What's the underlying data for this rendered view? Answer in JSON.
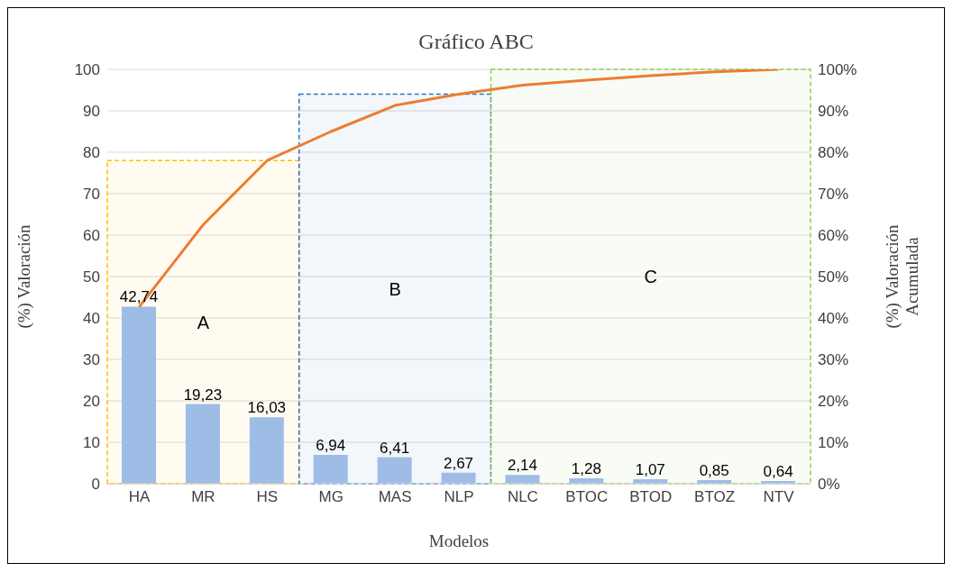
{
  "chart_data": {
    "type": "bar",
    "title": "Gráfico ABC",
    "xlabel": "Modelos",
    "ylabel": "(%) Valoración",
    "y2label": "(%) Valoración Acumulada",
    "categories": [
      "HA",
      "MR",
      "HS",
      "MG",
      "MAS",
      "NLP",
      "NLC",
      "BTOC",
      "BTOD",
      "BTOZ",
      "NTV"
    ],
    "series": [
      {
        "color": "#9dbde6",
        "values": [
          42.74,
          19.23,
          16.03,
          6.94,
          6.41,
          2.67,
          2.14,
          1.28,
          1.07,
          0.85,
          0.64
        ],
        "value_labels": [
          "42,74",
          "19,23",
          "16,03",
          "6,94",
          "6,41",
          "2,67",
          "2,14",
          "1,28",
          "1,07",
          "0,85",
          "0,64"
        ]
      },
      {
        "type": "line",
        "axis": "y2",
        "color": "#ed7d31",
        "values": [
          42.7,
          62.5,
          78,
          85,
          91.3,
          94,
          96.2,
          97.4,
          98.5,
          99.4,
          100
        ]
      }
    ],
    "ylim": [
      0,
      100
    ],
    "yticks": [
      0,
      10,
      20,
      30,
      40,
      50,
      60,
      70,
      80,
      90,
      100
    ],
    "y2lim": [
      0,
      100
    ],
    "y2ticks": [
      {
        "value": 0,
        "label": "0%"
      },
      {
        "value": 10,
        "label": "10%"
      },
      {
        "value": 20,
        "label": "20%"
      },
      {
        "value": 30,
        "label": "30%"
      },
      {
        "value": 40,
        "label": "40%"
      },
      {
        "value": 50,
        "label": "50%"
      },
      {
        "value": 60,
        "label": "60%"
      },
      {
        "value": 70,
        "label": "70%"
      },
      {
        "value": 80,
        "label": "80%"
      },
      {
        "value": 90,
        "label": "90%"
      },
      {
        "value": 100,
        "label": "100%"
      }
    ],
    "bands": [
      {
        "axis": "x",
        "from": "HA",
        "to": "HS",
        "label": "A",
        "color": "#ffc000"
      },
      {
        "axis": "x",
        "from": "MG",
        "to": "NLP",
        "label": "B",
        "color": "#2e75b6"
      },
      {
        "axis": "x",
        "from": "NLC",
        "to": "NTV",
        "label": "C",
        "color": "#92d050"
      }
    ],
    "grid": "y",
    "marker": "none",
    "line_style": "solid"
  }
}
